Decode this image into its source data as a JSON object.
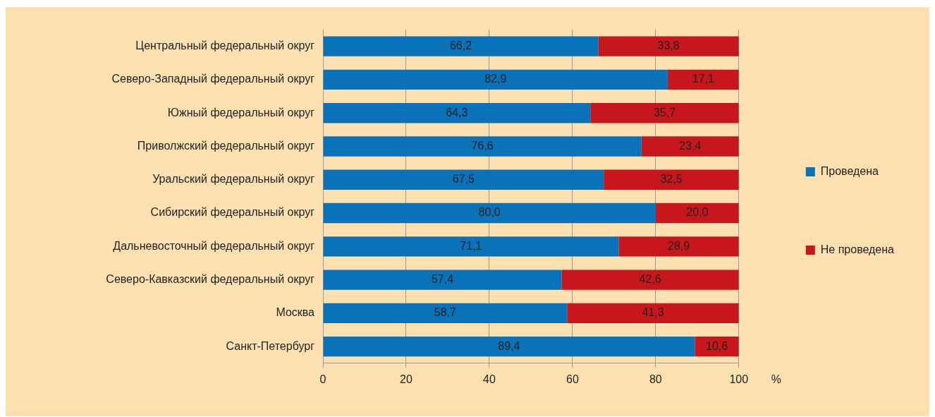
{
  "chart_data": {
    "type": "bar",
    "orientation": "horizontal",
    "stacked": true,
    "categories": [
      "Центральный федеральный округ",
      "Северо-Западный федеральный округ",
      "Южный федеральный округ",
      "Приволжский федеральный округ",
      "Уральский федеральный округ",
      "Сибирский федеральный округ",
      "Дальневосточный федеральный округ",
      "Северо-Кавказский федеральный округ",
      "Москва",
      "Санкт-Петербург"
    ],
    "series": [
      {
        "name": "Проведена",
        "color": "#0a72b8",
        "values": [
          66.2,
          82.9,
          64.3,
          76.6,
          67.5,
          80.0,
          71.1,
          57.4,
          58.7,
          89.4
        ],
        "value_labels": [
          "66,2",
          "82,9",
          "64,3",
          "76,6",
          "67,5",
          "80,0",
          "71,1",
          "57,4",
          "58,7",
          "89,4"
        ]
      },
      {
        "name": "Не проведена",
        "color": "#c8161d",
        "values": [
          33.8,
          17.1,
          35.7,
          23.4,
          32.5,
          20.0,
          28.9,
          42.6,
          41.3,
          10.6
        ],
        "value_labels": [
          "33,8",
          "17,1",
          "35,7",
          "23,4",
          "32,5",
          "20,0",
          "28,9",
          "42,6",
          "41,3",
          "10,6"
        ]
      }
    ],
    "xlim": [
      0,
      100
    ],
    "xticks": [
      0,
      20,
      40,
      60,
      80,
      100
    ],
    "xlabel": "%",
    "grid": "x",
    "legend": "right"
  }
}
